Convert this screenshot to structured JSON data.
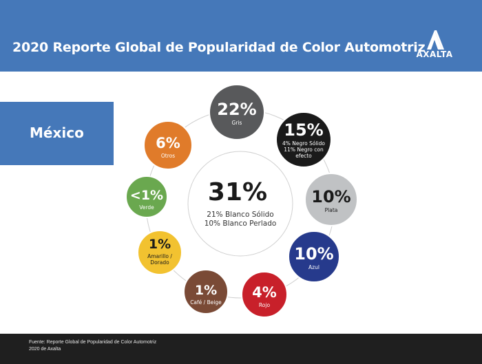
{
  "header": {
    "title": "2020 Reporte Global de Popularidad de Color Automotriz",
    "logo_text": "AXALTA"
  },
  "country": "México",
  "footer": {
    "line1": "Fuente: Reporte Global de Popularidad de Color Automotriz",
    "line2": "2020 de Axalta"
  },
  "chart_data": {
    "type": "pie",
    "center": {
      "value": "31%",
      "lines": [
        "21% Blanco Sólido",
        "10% Blanco Perlado"
      ]
    },
    "slices": [
      {
        "value": "22%",
        "label": [
          "Gris"
        ],
        "color": "#58595b"
      },
      {
        "value": "15%",
        "label": [
          "4% Negro Sólido",
          "11% Negro con",
          "efecto"
        ],
        "color": "#1a1a1a"
      },
      {
        "value": "10%",
        "label": [
          "Plata"
        ],
        "color": "#c0c2c4"
      },
      {
        "value": "10%",
        "label": [
          "Azul"
        ],
        "color": "#263a8c"
      },
      {
        "value": "4%",
        "label": [
          "Rojo"
        ],
        "color": "#c8202a"
      },
      {
        "value": "1%",
        "label": [
          "Café / Beige"
        ],
        "color": "#7a4a36"
      },
      {
        "value": "1%",
        "label": [
          "Amarillo /",
          "Dorado"
        ],
        "color": "#f2c230"
      },
      {
        "value": "<1%",
        "label": [
          "Verde"
        ],
        "color": "#6aa84f"
      },
      {
        "value": "6%",
        "label": [
          "Otros"
        ],
        "color": "#e07b2a"
      }
    ]
  }
}
